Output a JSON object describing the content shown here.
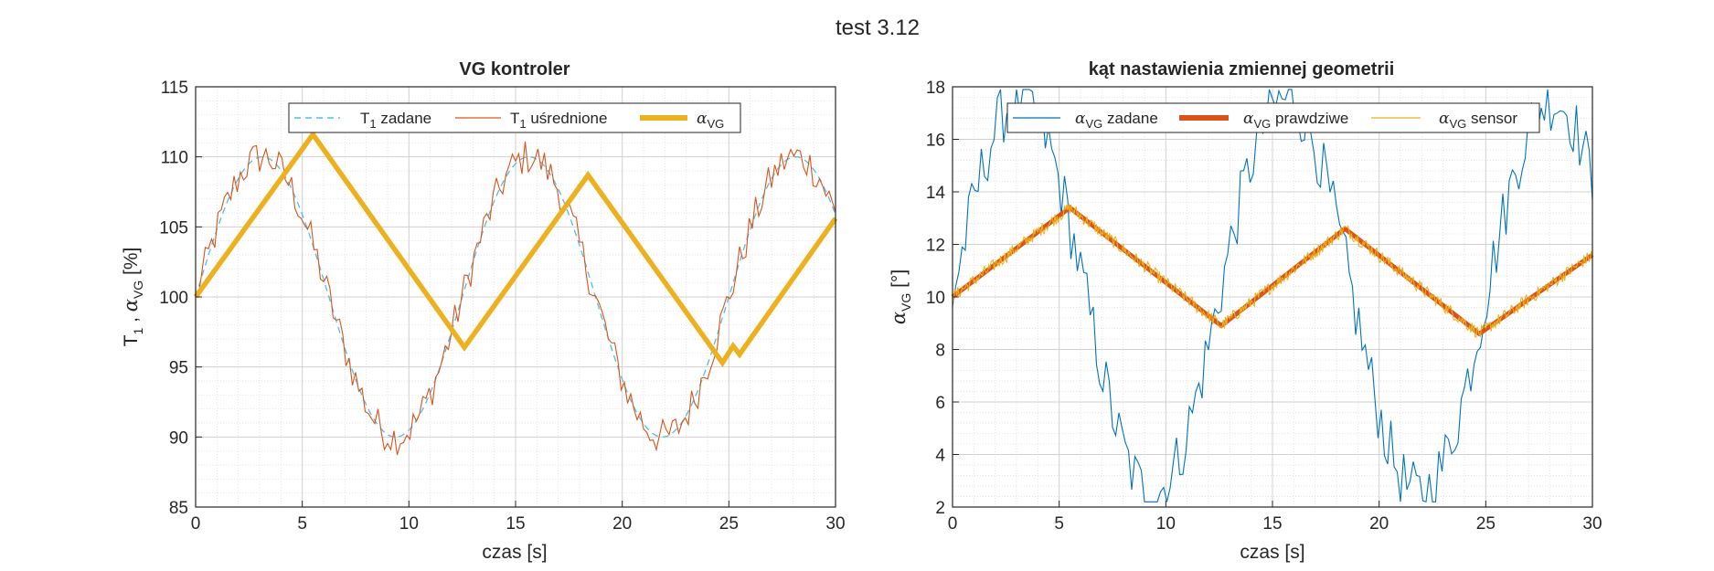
{
  "figure": {
    "suptitle": "test 3.12"
  },
  "chart_data": [
    {
      "type": "line",
      "title": "VG kontroler",
      "xlabel": "czas [s]",
      "ylabel": "T₁ , αVG [%]",
      "xlim": [
        0,
        30
      ],
      "ylim": [
        85,
        115
      ],
      "xticks": [
        "0",
        "5",
        "10",
        "15",
        "20",
        "25",
        "30"
      ],
      "yticks": [
        "85",
        "90",
        "95",
        "100",
        "105",
        "110",
        "115"
      ],
      "grid": true,
      "legend_position": "top",
      "series": [
        {
          "name": "T₁ zadane",
          "style": "dashed",
          "color": "#0072BD",
          "function": "100 + 10*sin(2*pi*t/12.5)"
        },
        {
          "name": "T₁ uśrednione",
          "style": "solid",
          "color": "#D95319",
          "function": "100 + 10*sin(2*pi*t/12.5) + noise(±1.2)"
        },
        {
          "name": "αVG",
          "style": "solid-thick",
          "color": "#EDB120",
          "x": [
            0,
            5.5,
            12.6,
            18.4,
            24.7,
            25.2,
            25.5,
            30
          ],
          "y": [
            100,
            111.6,
            96.4,
            108.7,
            95.3,
            96.5,
            95.9,
            105.6
          ]
        }
      ]
    },
    {
      "type": "line",
      "title": "kąt nastawienia zmiennej geometrii",
      "xlabel": "czas [s]",
      "ylabel": "αVG [°]",
      "xlim": [
        0,
        30
      ],
      "ylim": [
        2,
        18
      ],
      "xticks": [
        "0",
        "5",
        "10",
        "15",
        "20",
        "25",
        "30"
      ],
      "yticks": [
        "2",
        "4",
        "6",
        "8",
        "10",
        "12",
        "14",
        "16",
        "18"
      ],
      "grid": true,
      "legend_position": "top",
      "series": [
        {
          "name": "αVG zadane",
          "style": "solid-thin",
          "color": "#0072BD",
          "function": "10 + 7.5*sin(2*pi*t/12.5) + noise(±1.2), clipped at 18"
        },
        {
          "name": "αVG prawdziwe",
          "style": "solid-thick",
          "color": "#D95319",
          "x": [
            0,
            5.5,
            12.6,
            18.4,
            24.7,
            30
          ],
          "y": [
            10,
            13.4,
            8.9,
            12.6,
            8.6,
            11.6
          ]
        },
        {
          "name": "αVG sensor",
          "style": "solid-noisy",
          "color": "#EDB120",
          "x": [
            0,
            5.5,
            12.6,
            18.4,
            24.7,
            30
          ],
          "y": [
            10,
            13.4,
            8.9,
            12.6,
            8.6,
            11.6
          ]
        }
      ]
    }
  ]
}
